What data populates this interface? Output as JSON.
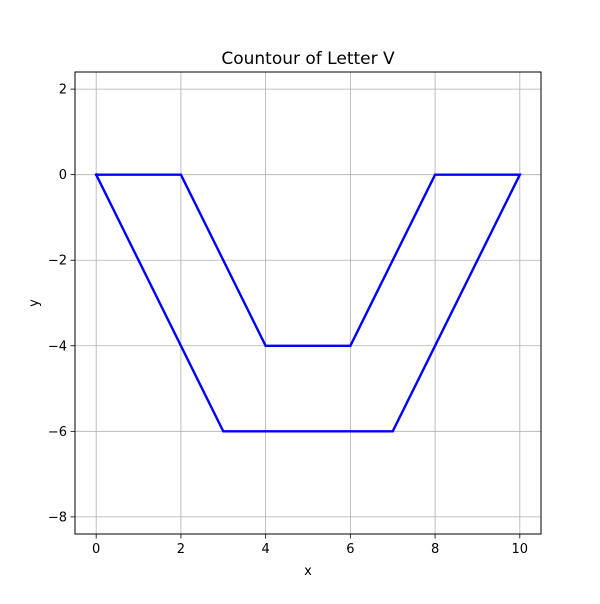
{
  "chart_data": {
    "type": "line",
    "title": "Countour of Letter V",
    "xlabel": "x",
    "ylabel": "y",
    "xlim": [
      -0.5,
      10.5
    ],
    "ylim": [
      -8.4,
      2.4
    ],
    "xticks": [
      0,
      2,
      4,
      6,
      8,
      10
    ],
    "xtick_labels": [
      "0",
      "2",
      "4",
      "6",
      "8",
      "10"
    ],
    "yticks": [
      2,
      0,
      -2,
      -4,
      -6,
      -8
    ],
    "ytick_labels": [
      "2",
      "0",
      "−2",
      "−4",
      "−6",
      "−8"
    ],
    "grid": true,
    "series": [
      {
        "color": "#0000ff",
        "x": [
          0,
          2,
          4,
          6,
          8,
          10,
          7,
          3,
          0
        ],
        "y": [
          0,
          0,
          -4,
          -4,
          0,
          0,
          -6,
          -6,
          0
        ]
      }
    ]
  }
}
